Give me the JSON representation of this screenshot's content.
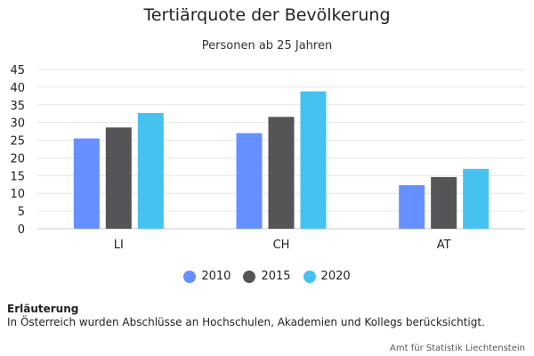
{
  "chart_data": {
    "type": "bar",
    "title": "Tertiärquote der Bevölkerung",
    "subtitle": "Personen ab 25 Jahren",
    "categories": [
      "LI",
      "CH",
      "AT"
    ],
    "series": [
      {
        "name": "2010",
        "values": [
          25.5,
          27.0,
          12.3
        ],
        "color": "#6690ff"
      },
      {
        "name": "2015",
        "values": [
          28.6,
          31.6,
          14.6
        ],
        "color": "#555558"
      },
      {
        "name": "2020",
        "values": [
          32.7,
          38.8,
          16.9
        ],
        "color": "#45c2f0"
      }
    ],
    "ylim": [
      0,
      45
    ],
    "yticks": [
      0,
      5,
      10,
      15,
      20,
      25,
      30,
      35,
      40,
      45
    ],
    "xlabel": "",
    "ylabel": "",
    "grid": true,
    "legend": "bottom-center"
  },
  "note": {
    "title": "Erläuterung",
    "text": "In Österreich wurden Abschlüsse an Hochschulen, Akademien und Kollegs berücksichtigt."
  },
  "source": "Amt für Statistik Liechtenstein"
}
